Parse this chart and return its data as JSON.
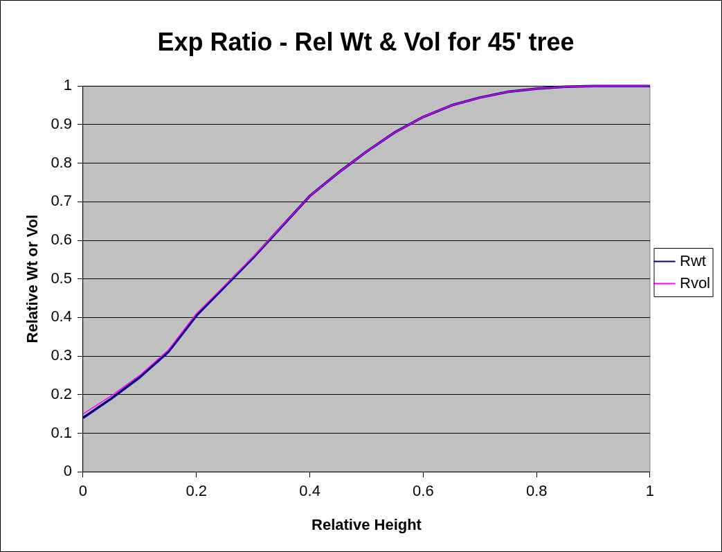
{
  "chart_data": {
    "type": "line",
    "title": "Exp Ratio - Rel Wt & Vol for 45' tree",
    "xlabel": "Relative Height",
    "ylabel": "Relative Wt or Vol",
    "x": [
      0,
      0.05,
      0.1,
      0.15,
      0.2,
      0.25,
      0.3,
      0.35,
      0.4,
      0.45,
      0.5,
      0.55,
      0.6,
      0.65,
      0.7,
      0.75,
      0.8,
      0.85,
      0.9,
      0.95,
      1
    ],
    "series": [
      {
        "name": "Rwt",
        "color": "#000080",
        "values": [
          0.14,
          0.19,
          0.245,
          0.31,
          0.405,
          0.48,
          0.555,
          0.635,
          0.715,
          0.775,
          0.83,
          0.88,
          0.92,
          0.95,
          0.97,
          0.985,
          0.993,
          0.998,
          1,
          1,
          1
        ]
      },
      {
        "name": "Rvol",
        "color": "#ff00ff",
        "values": [
          0.15,
          0.197,
          0.25,
          0.315,
          0.41,
          0.483,
          0.557,
          0.636,
          0.715,
          0.775,
          0.83,
          0.88,
          0.92,
          0.95,
          0.97,
          0.985,
          0.993,
          0.998,
          1,
          1,
          1
        ]
      }
    ],
    "xlim": [
      0,
      1
    ],
    "xticks": [
      0,
      0.2,
      0.4,
      0.6,
      0.8,
      1
    ],
    "ylim": [
      0,
      1
    ],
    "yticks": [
      0,
      0.1,
      0.2,
      0.3,
      0.4,
      0.5,
      0.6,
      0.7,
      0.8,
      0.9,
      1
    ],
    "grid": "y",
    "legend": "right",
    "marker": "none",
    "line_style": "solid"
  }
}
